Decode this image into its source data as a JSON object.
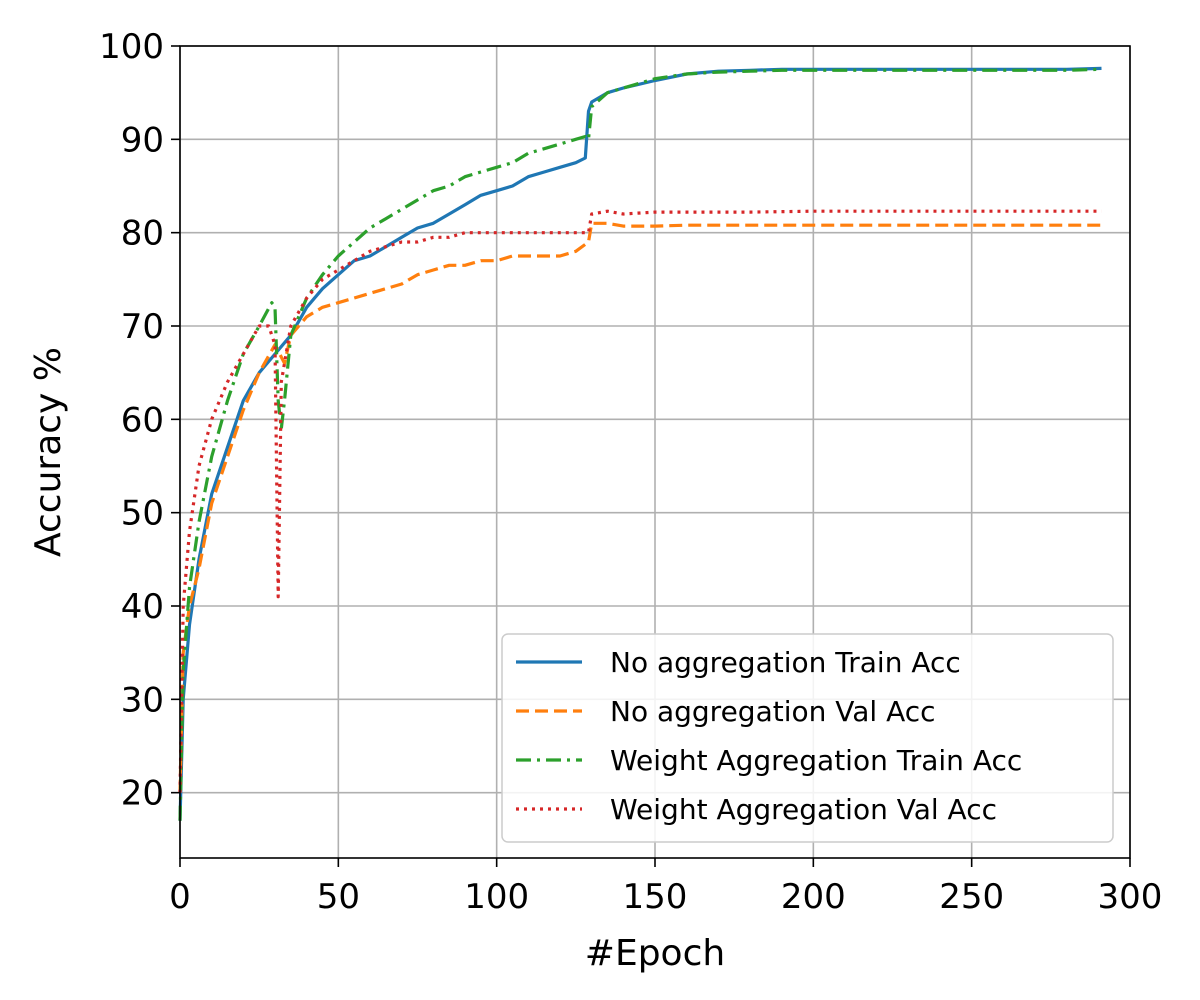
{
  "chart_data": {
    "type": "line",
    "xlabel": "#Epoch",
    "ylabel": "Accuracy %",
    "xlim": [
      0,
      300
    ],
    "ylim": [
      13,
      100
    ],
    "xticks": [
      0,
      50,
      100,
      150,
      200,
      250,
      300
    ],
    "yticks": [
      20,
      30,
      40,
      50,
      60,
      70,
      80,
      90,
      100
    ],
    "grid": true,
    "legend_position": "lower-right",
    "series": [
      {
        "name": "No aggregation Train Acc",
        "color": "#1f77b4",
        "style": "solid",
        "x": [
          0,
          1,
          3,
          6,
          10,
          15,
          20,
          25,
          30,
          35,
          40,
          45,
          50,
          55,
          60,
          65,
          70,
          75,
          80,
          85,
          90,
          95,
          100,
          105,
          110,
          115,
          120,
          125,
          128,
          129,
          130,
          135,
          140,
          150,
          160,
          170,
          180,
          190,
          200,
          220,
          240,
          260,
          280,
          291
        ],
        "y": [
          17,
          30,
          38,
          45,
          52,
          57,
          62,
          65,
          67,
          69,
          72,
          74,
          75.5,
          77,
          77.5,
          78.5,
          79.5,
          80.5,
          81,
          82,
          83,
          84,
          84.5,
          85,
          86,
          86.5,
          87,
          87.5,
          88,
          93,
          94,
          95,
          95.5,
          96.3,
          97,
          97.3,
          97.4,
          97.5,
          97.5,
          97.5,
          97.5,
          97.5,
          97.5,
          97.6
        ]
      },
      {
        "name": "No aggregation Val Acc",
        "color": "#ff7f0e",
        "style": "dashed",
        "x": [
          0,
          1,
          3,
          6,
          10,
          15,
          20,
          25,
          30,
          33,
          35,
          40,
          45,
          50,
          55,
          60,
          65,
          70,
          75,
          80,
          85,
          90,
          95,
          100,
          105,
          110,
          115,
          120,
          125,
          129,
          130,
          135,
          140,
          150,
          160,
          180,
          200,
          220,
          240,
          260,
          280,
          291
        ],
        "y": [
          20,
          35,
          40,
          44,
          51,
          56,
          61,
          65,
          68,
          66,
          69,
          71,
          72,
          72.5,
          73,
          73.5,
          74,
          74.5,
          75.5,
          76,
          76.5,
          76.5,
          77,
          77,
          77.5,
          77.5,
          77.5,
          77.5,
          78,
          79,
          81,
          81,
          80.7,
          80.7,
          80.8,
          80.8,
          80.8,
          80.8,
          80.8,
          80.8,
          80.8,
          80.8
        ]
      },
      {
        "name": "Weight Aggregation Train Acc",
        "color": "#2ca02c",
        "style": "dashdot",
        "x": [
          0,
          1,
          3,
          6,
          10,
          15,
          20,
          25,
          29,
          30,
          31,
          32,
          33,
          35,
          40,
          45,
          50,
          55,
          60,
          65,
          70,
          75,
          80,
          85,
          90,
          95,
          100,
          105,
          110,
          115,
          120,
          125,
          128,
          129,
          130,
          135,
          140,
          150,
          160,
          170,
          180,
          190,
          200,
          220,
          240,
          260,
          280,
          291
        ],
        "y": [
          17,
          33,
          42,
          49,
          56,
          62,
          67,
          70,
          72.5,
          72,
          62,
          59,
          62,
          69,
          73,
          75.5,
          77.5,
          79,
          80.5,
          81.5,
          82.5,
          83.5,
          84.5,
          85,
          86,
          86.5,
          87,
          87.5,
          88.5,
          89,
          89.5,
          90,
          90.3,
          90,
          93.5,
          95,
          95.5,
          96.5,
          97,
          97.2,
          97.3,
          97.4,
          97.4,
          97.4,
          97.4,
          97.4,
          97.4,
          97.5
        ]
      },
      {
        "name": "Weight Aggregation Val Acc",
        "color": "#d62728",
        "style": "dotted",
        "x": [
          0,
          1,
          3,
          6,
          10,
          15,
          20,
          25,
          28,
          30,
          31,
          32,
          33,
          35,
          40,
          45,
          50,
          55,
          60,
          65,
          70,
          75,
          80,
          85,
          90,
          95,
          100,
          105,
          110,
          115,
          120,
          125,
          129,
          130,
          135,
          140,
          150,
          160,
          180,
          200,
          220,
          240,
          260,
          280,
          291
        ],
        "y": [
          20,
          40,
          48,
          55,
          60,
          64,
          67,
          70,
          70,
          68,
          41,
          64,
          66,
          70,
          73,
          75,
          76,
          77,
          78,
          78.5,
          79,
          79,
          79.5,
          79.5,
          80,
          80,
          80,
          80,
          80,
          80,
          80,
          80,
          80,
          82,
          82.3,
          82,
          82.2,
          82.2,
          82.2,
          82.3,
          82.3,
          82.3,
          82.3,
          82.3,
          82.3
        ]
      }
    ]
  }
}
